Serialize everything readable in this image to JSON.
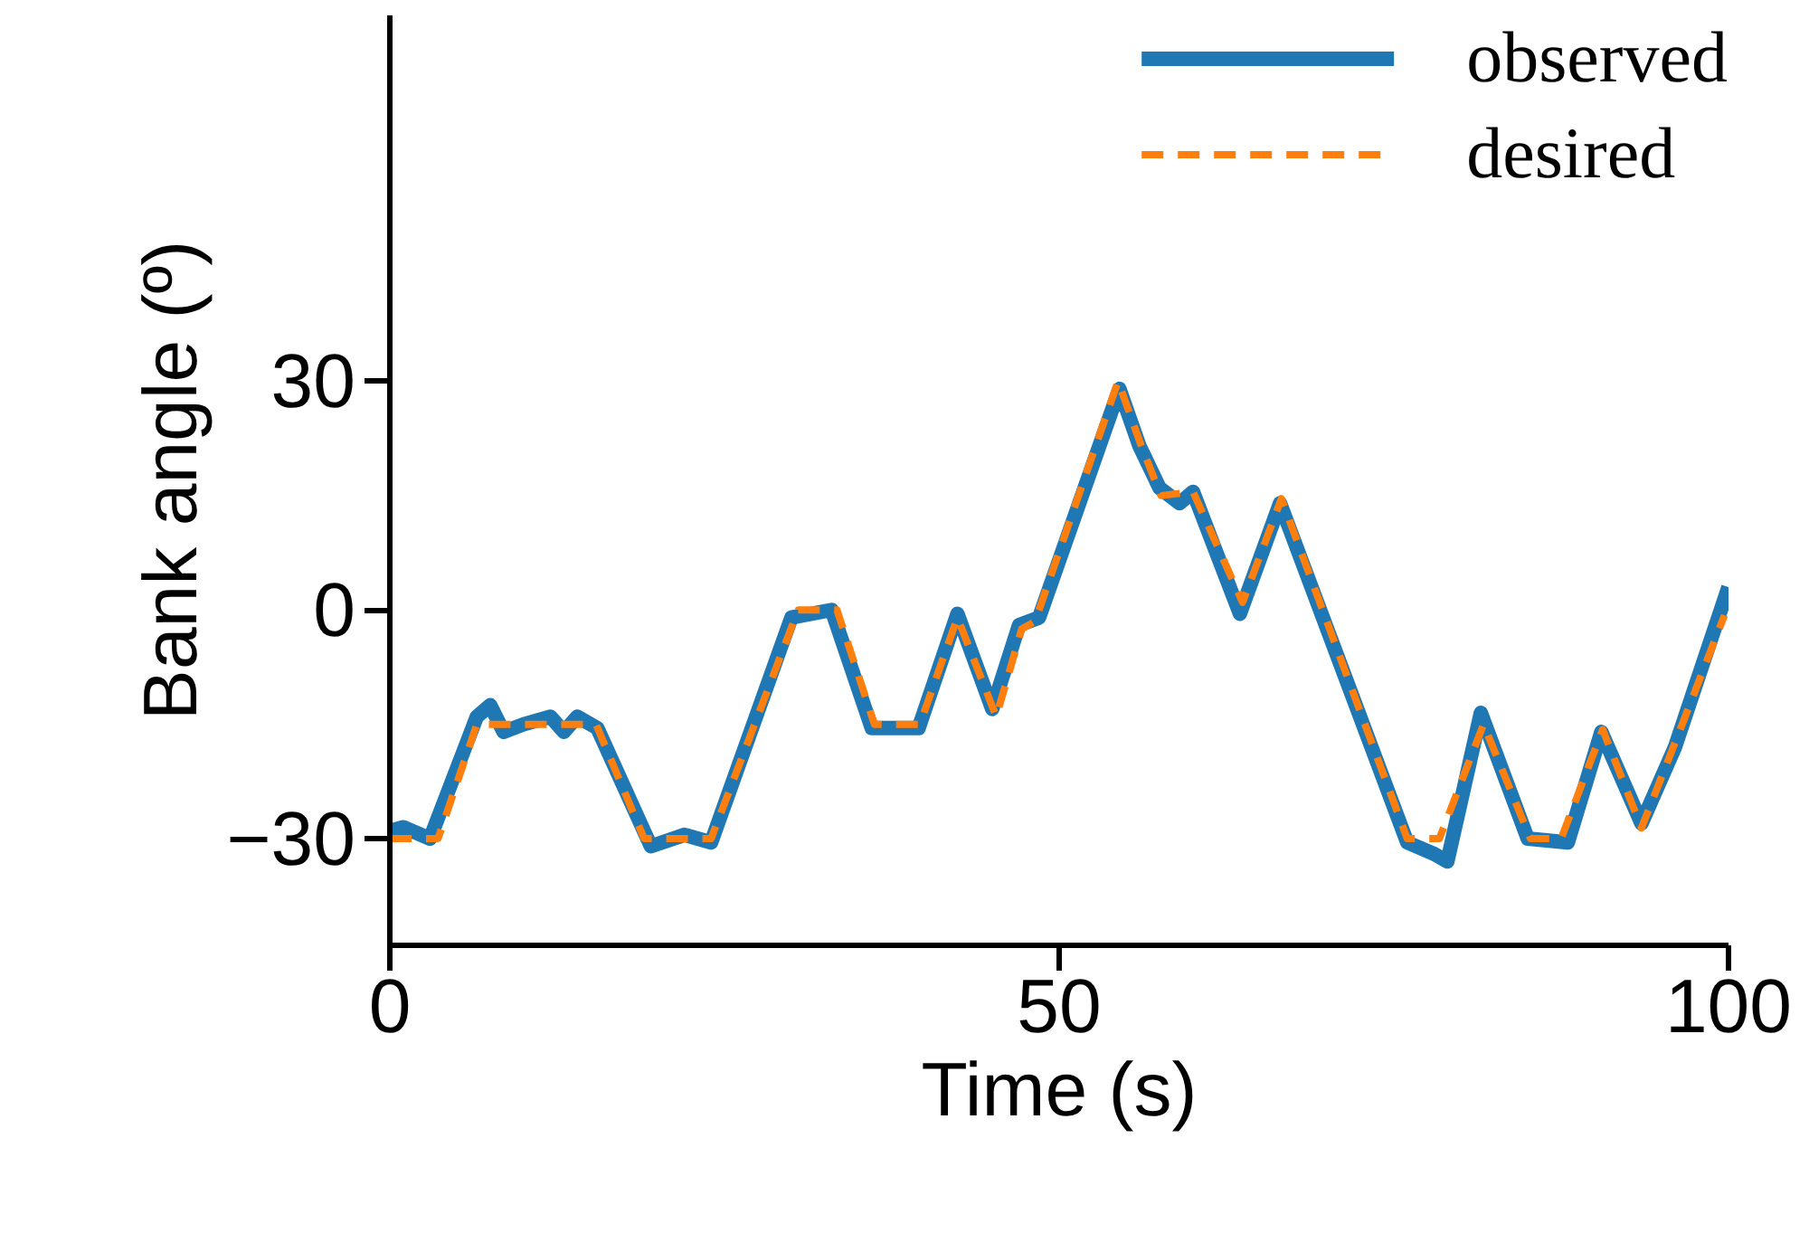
{
  "chart_data": {
    "type": "line",
    "xlabel": "Time (s)",
    "ylabel": "Bank angle (º)",
    "xlim": [
      0,
      100
    ],
    "ylim": [
      -44,
      78
    ],
    "xticks": [
      0,
      50,
      100
    ],
    "yticks": [
      -30,
      0,
      30
    ],
    "grid": false,
    "legend": "top right",
    "series": [
      {
        "name": "observed",
        "color": "#1f77b4",
        "line_style": "solid",
        "x": [
          0,
          1,
          3,
          6.5,
          7.5,
          8.5,
          10,
          12,
          13,
          14,
          15.5,
          19.5,
          22,
          24,
          30,
          33,
          36,
          39.5,
          42.4,
          45,
          47,
          48.5,
          54.5,
          56,
          57.5,
          59,
          60,
          63.5,
          66.5,
          76,
          78,
          79,
          81.5,
          85,
          88,
          90.5,
          93.5,
          96,
          100
        ],
        "values": [
          -29,
          -28.5,
          -30,
          -14,
          -12.5,
          -16,
          -15,
          -14,
          -16,
          -14,
          -15.5,
          -31,
          -29.5,
          -30.5,
          -1,
          0,
          -15.5,
          -15.5,
          -0.5,
          -13,
          -2,
          -1,
          29,
          21.5,
          16,
          14,
          15.5,
          -0.5,
          14,
          -30.5,
          -32,
          -33,
          -13.5,
          -30,
          -30.5,
          -16,
          -28,
          -18,
          3
        ]
      },
      {
        "name": "desired",
        "color": "#ff7f0e",
        "line_style": "dashed",
        "x": [
          0,
          3.6,
          6.5,
          15.4,
          19,
          24,
          30.5,
          33.4,
          36.2,
          39.6,
          42.4,
          45.3,
          47.2,
          48.2,
          54.4,
          56.1,
          57.6,
          60,
          63.7,
          66.6,
          76,
          78.4,
          81.7,
          85.2,
          87.5,
          90.6,
          93.5,
          96.1,
          99.7
        ],
        "values": [
          -30,
          -30,
          -15,
          -15,
          -30,
          -30,
          0,
          0,
          -15,
          -15,
          -1,
          -14,
          -2.5,
          -1.5,
          30,
          21.7,
          15,
          15.5,
          1,
          14.6,
          -30,
          -30,
          -15,
          -30,
          -30,
          -15.7,
          -28.6,
          -17,
          -0.7
        ]
      }
    ]
  }
}
